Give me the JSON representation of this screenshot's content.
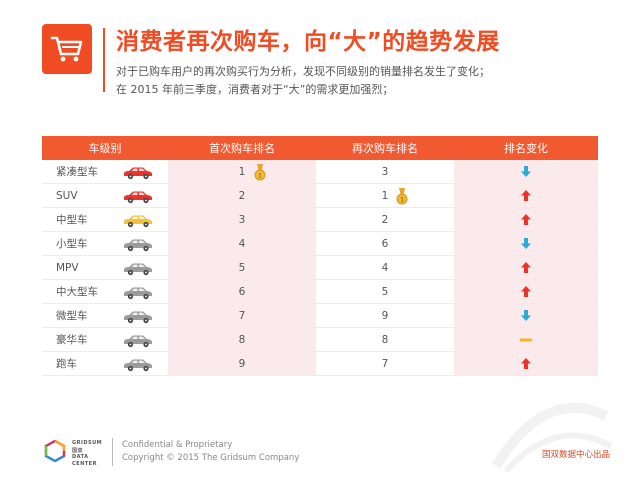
{
  "header": {
    "title": "消费者再次购车，向“大”的趋势发展",
    "subtitle_line1": "对于已购车用户的再次购买行为分析，发现不同级别的销量排名发生了变化；",
    "subtitle_line2": "在 2015 年前三季度，消费者对于“大”的需求更加强烈；",
    "icon": "shopping-cart-icon",
    "accent_color": "#f04b22"
  },
  "table": {
    "headers": [
      "车级别",
      "首次购车排名",
      "再次购车排名",
      "排名变化"
    ],
    "rows": [
      {
        "type": "紧凑型车",
        "first": "1",
        "second": "3",
        "change": "down",
        "car_color": "#e8342a",
        "medal_on": "first"
      },
      {
        "type": "SUV",
        "first": "2",
        "second": "1",
        "change": "up",
        "car_color": "#e8342a",
        "medal_on": "second"
      },
      {
        "type": "中型车",
        "first": "3",
        "second": "2",
        "change": "up",
        "car_color": "#f2c23a",
        "medal_on": ""
      },
      {
        "type": "小型车",
        "first": "4",
        "second": "6",
        "change": "down",
        "car_color": "#9b9b9b",
        "medal_on": ""
      },
      {
        "type": "MPV",
        "first": "5",
        "second": "4",
        "change": "up",
        "car_color": "#9b9b9b",
        "medal_on": ""
      },
      {
        "type": "中大型车",
        "first": "6",
        "second": "5",
        "change": "up",
        "car_color": "#9b9b9b",
        "medal_on": ""
      },
      {
        "type": "微型车",
        "first": "7",
        "second": "9",
        "change": "down",
        "car_color": "#9b9b9b",
        "medal_on": ""
      },
      {
        "type": "豪华车",
        "first": "8",
        "second": "8",
        "change": "same",
        "car_color": "#9b9b9b",
        "medal_on": ""
      },
      {
        "type": "跑车",
        "first": "9",
        "second": "7",
        "change": "up",
        "car_color": "#9b9b9b",
        "medal_on": ""
      }
    ],
    "colors": {
      "up": "#e8342a",
      "down": "#2ea9d6",
      "same": "#f5b531",
      "header_bg": "#f15a30",
      "highlight_bg": "#fbeaec"
    }
  },
  "footer": {
    "logo_line1": "GRIDSUM",
    "logo_line2": "国双",
    "logo_line3": "DATA",
    "logo_line4": "CENTER",
    "confidential": "Confidential & Proprietary",
    "copyright": "Copyright © 2015 The Gridsum Company",
    "source": "国双数据中心出品"
  }
}
